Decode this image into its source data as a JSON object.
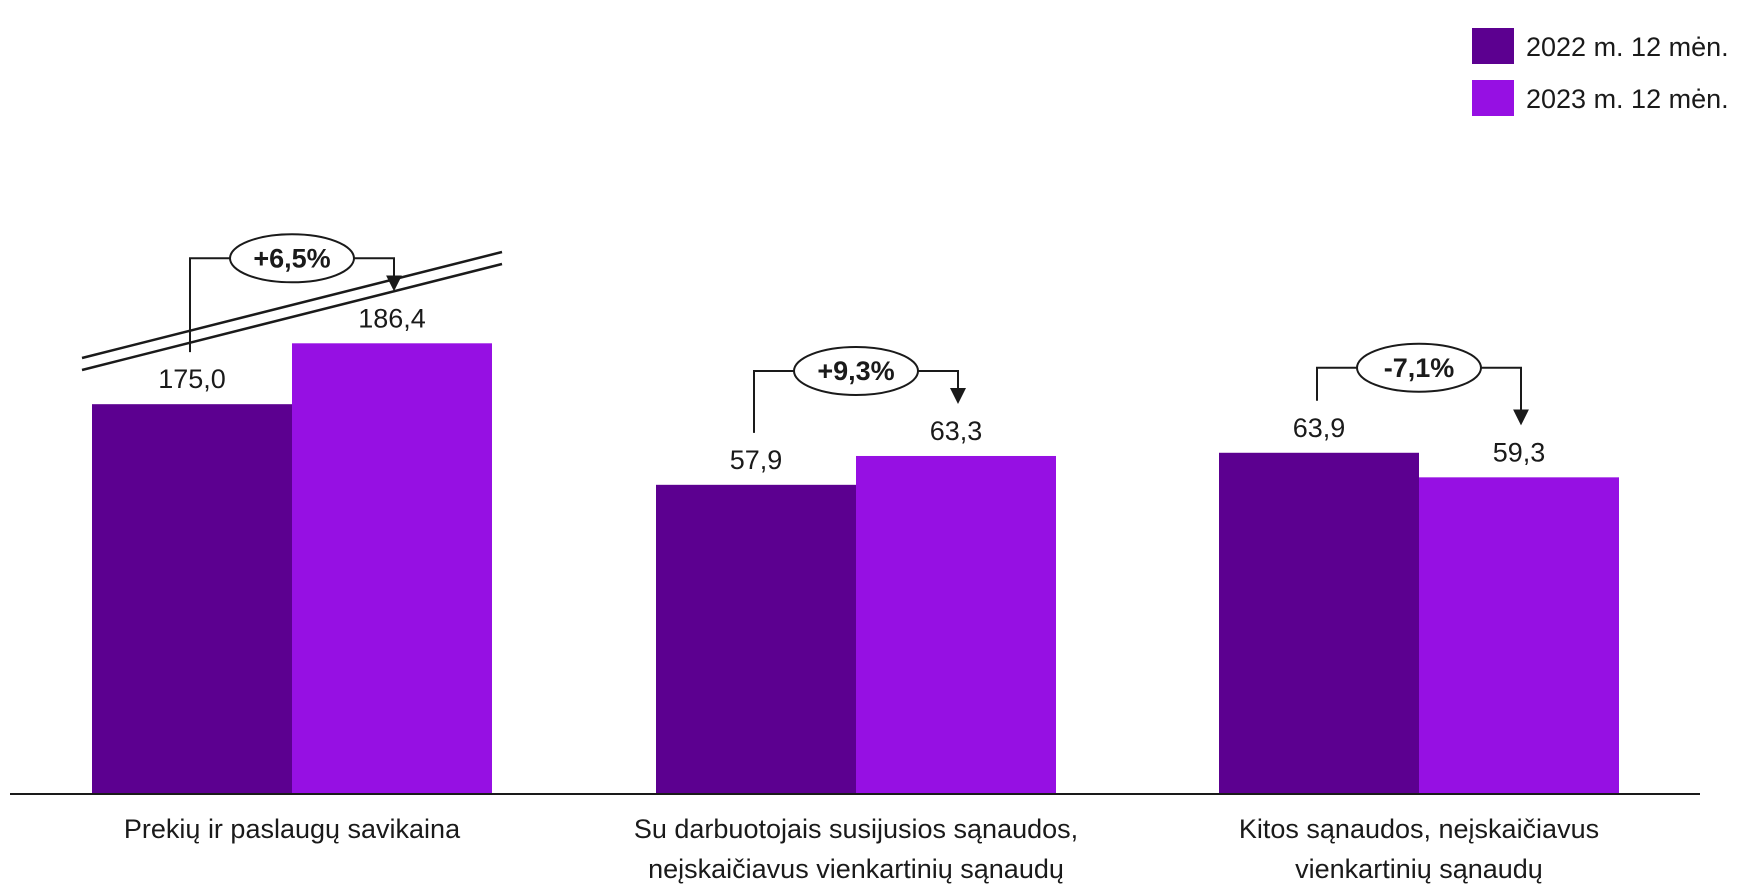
{
  "chart_data": {
    "type": "bar",
    "categories": [
      [
        "Prekių ir paslaugų savikaina"
      ],
      [
        "Su darbuotojais susijusios sąnaudos,",
        "neįskaičiavus vienkartinių sąnaudų"
      ],
      [
        "Kitos sąnaudos, neįskaičiavus",
        "vienkartinių sąnaudų"
      ]
    ],
    "series": [
      {
        "name": "2022 m. 12 mėn.",
        "values": [
          175.0,
          57.9,
          63.9
        ],
        "labels": [
          "175,0",
          "57,9",
          "63,9"
        ],
        "color": "#5c0090"
      },
      {
        "name": "2023 m. 12 mėn.",
        "values": [
          186.4,
          63.3,
          59.3
        ],
        "labels": [
          "186,4",
          "63,3",
          "59,3"
        ],
        "color": "#9610e3"
      }
    ],
    "changes": [
      "+6,5%",
      "+9,3%",
      "-7,1%"
    ],
    "axis_break": {
      "category_index": 0
    },
    "legend_position": "top-right",
    "grid": false
  }
}
